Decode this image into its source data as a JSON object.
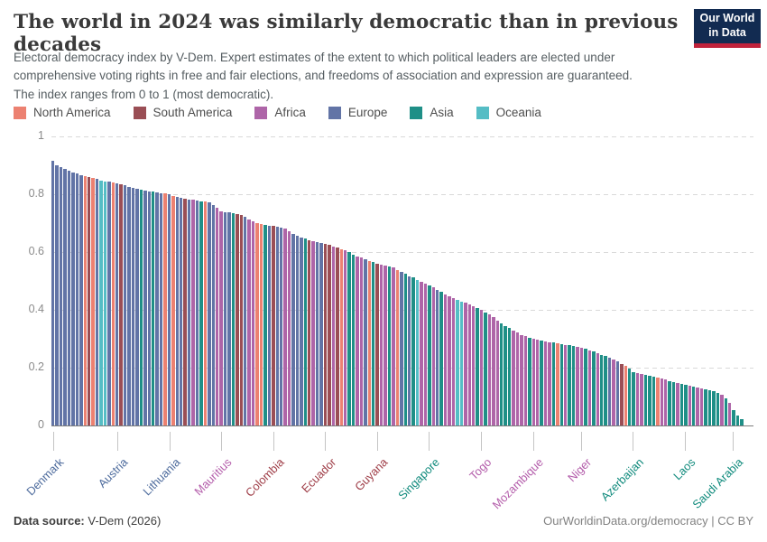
{
  "header": {
    "title": "The world in 2024 was similarly democratic than in previous decades",
    "subtitle": "Electoral democracy index by V-Dem. Expert estimates of the extent to which political leaders are elected under comprehensive voting rights in free and fair elections, and freedoms of association and expression are guaranteed. The index ranges from 0 to 1 (most democratic).",
    "logo": {
      "line1": "Our World",
      "line2": "in Data",
      "bg_color": "#122b51",
      "stripe_color": "#c0223b"
    }
  },
  "legend": {
    "items": [
      {
        "label": "North America",
        "color": "#ec8171"
      },
      {
        "label": "South America",
        "color": "#9a4e55"
      },
      {
        "label": "Africa",
        "color": "#ae65a8"
      },
      {
        "label": "Europe",
        "color": "#6274a6"
      },
      {
        "label": "Asia",
        "color": "#1f8f87"
      },
      {
        "label": "Oceania",
        "color": "#55bdc5"
      }
    ]
  },
  "chart_data": {
    "type": "bar",
    "title": "The world in 2024 was similarly democratic than in previous decades",
    "ylabel": "",
    "ylim": [
      0,
      1
    ],
    "yticks": [
      0,
      0.2,
      0.4,
      0.6,
      0.8,
      1
    ],
    "ytick_labels": [
      "0",
      "0.2",
      "0.4",
      "0.6",
      "0.8",
      "1"
    ],
    "grid": "dashed horizontal",
    "legend_position": "top",
    "regions": {
      "N": {
        "name": "North America",
        "bar_color": "#ec8171",
        "label_color": "#d8624d"
      },
      "S": {
        "name": "South America",
        "bar_color": "#9a4e55",
        "label_color": "#9e3c46"
      },
      "F": {
        "name": "Africa",
        "bar_color": "#ae65a8",
        "label_color": "#b35caa"
      },
      "E": {
        "name": "Europe",
        "bar_color": "#6274a6",
        "label_color": "#4c6a9c"
      },
      "A": {
        "name": "Asia",
        "bar_color": "#1f8f87",
        "label_color": "#0f8a7c"
      },
      "O": {
        "name": "Oceania",
        "bar_color": "#55bdc5",
        "label_color": "#38aaba"
      }
    },
    "bar_regions": "EEEEEEEENSNEOOENESEEEEAEEAEENENEESEFEANEEFFEEASSEFFNNAESEEFFEEEASFEESSFSNFAAFFENASFFAFNEAEAOFFAFEAFFFOOFFFAFAFFFAAAFFFFAFFAFFANAFAAFFAFAFAAEFESNAAFFAAANFFAAFAAFAFFAAAAFAFAAA",
    "bar_values": [
      0.915,
      0.9,
      0.893,
      0.888,
      0.882,
      0.875,
      0.871,
      0.866,
      0.862,
      0.858,
      0.855,
      0.852,
      0.848,
      0.845,
      0.843,
      0.84,
      0.838,
      0.833,
      0.83,
      0.826,
      0.822,
      0.818,
      0.815,
      0.812,
      0.81,
      0.808,
      0.806,
      0.804,
      0.802,
      0.8,
      0.795,
      0.791,
      0.788,
      0.785,
      0.782,
      0.78,
      0.778,
      0.776,
      0.774,
      0.772,
      0.762,
      0.752,
      0.742,
      0.739,
      0.736,
      0.734,
      0.731,
      0.728,
      0.721,
      0.713,
      0.706,
      0.701,
      0.698,
      0.695,
      0.692,
      0.69,
      0.688,
      0.685,
      0.68,
      0.671,
      0.663,
      0.656,
      0.651,
      0.646,
      0.641,
      0.638,
      0.635,
      0.632,
      0.629,
      0.625,
      0.62,
      0.615,
      0.61,
      0.605,
      0.6,
      0.592,
      0.585,
      0.58,
      0.575,
      0.57,
      0.565,
      0.56,
      0.557,
      0.554,
      0.551,
      0.547,
      0.539,
      0.531,
      0.524,
      0.517,
      0.511,
      0.504,
      0.498,
      0.491,
      0.484,
      0.477,
      0.469,
      0.461,
      0.454,
      0.447,
      0.44,
      0.434,
      0.429,
      0.424,
      0.419,
      0.414,
      0.407,
      0.4,
      0.392,
      0.384,
      0.374,
      0.364,
      0.354,
      0.345,
      0.337,
      0.329,
      0.321,
      0.314,
      0.309,
      0.304,
      0.3,
      0.297,
      0.294,
      0.291,
      0.289,
      0.286,
      0.284,
      0.281,
      0.279,
      0.277,
      0.274,
      0.272,
      0.27,
      0.265,
      0.26,
      0.255,
      0.25,
      0.245,
      0.24,
      0.234,
      0.228,
      0.221,
      0.214,
      0.207,
      0.196,
      0.185,
      0.181,
      0.178,
      0.174,
      0.171,
      0.168,
      0.165,
      0.162,
      0.158,
      0.154,
      0.151,
      0.148,
      0.144,
      0.14,
      0.136,
      0.133,
      0.13,
      0.127,
      0.124,
      0.121,
      0.118,
      0.112,
      0.105,
      0.095,
      0.078,
      0.052,
      0.035,
      0.022
    ],
    "x_tick_labels": [
      {
        "label": "Denmark",
        "index": 0,
        "region": "E"
      },
      {
        "label": "Austria",
        "index": 16,
        "region": "E"
      },
      {
        "label": "Lithuania",
        "index": 29,
        "region": "E"
      },
      {
        "label": "Mauritius",
        "index": 42,
        "region": "F"
      },
      {
        "label": "Colombia",
        "index": 55,
        "region": "S"
      },
      {
        "label": "Ecuador",
        "index": 68,
        "region": "S"
      },
      {
        "label": "Guyana",
        "index": 81,
        "region": "S"
      },
      {
        "label": "Singapore",
        "index": 94,
        "region": "A"
      },
      {
        "label": "Togo",
        "index": 107,
        "region": "F"
      },
      {
        "label": "Mozambique",
        "index": 120,
        "region": "F"
      },
      {
        "label": "Niger",
        "index": 132,
        "region": "F"
      },
      {
        "label": "Azerbaijan",
        "index": 145,
        "region": "A"
      },
      {
        "label": "Laos",
        "index": 158,
        "region": "A"
      },
      {
        "label": "Saudi Arabia",
        "index": 170,
        "region": "A"
      }
    ]
  },
  "footer": {
    "datasource_label": "Data source:",
    "datasource_value": " V-Dem (2026)",
    "credit": "OurWorldinData.org/democracy | CC BY"
  }
}
